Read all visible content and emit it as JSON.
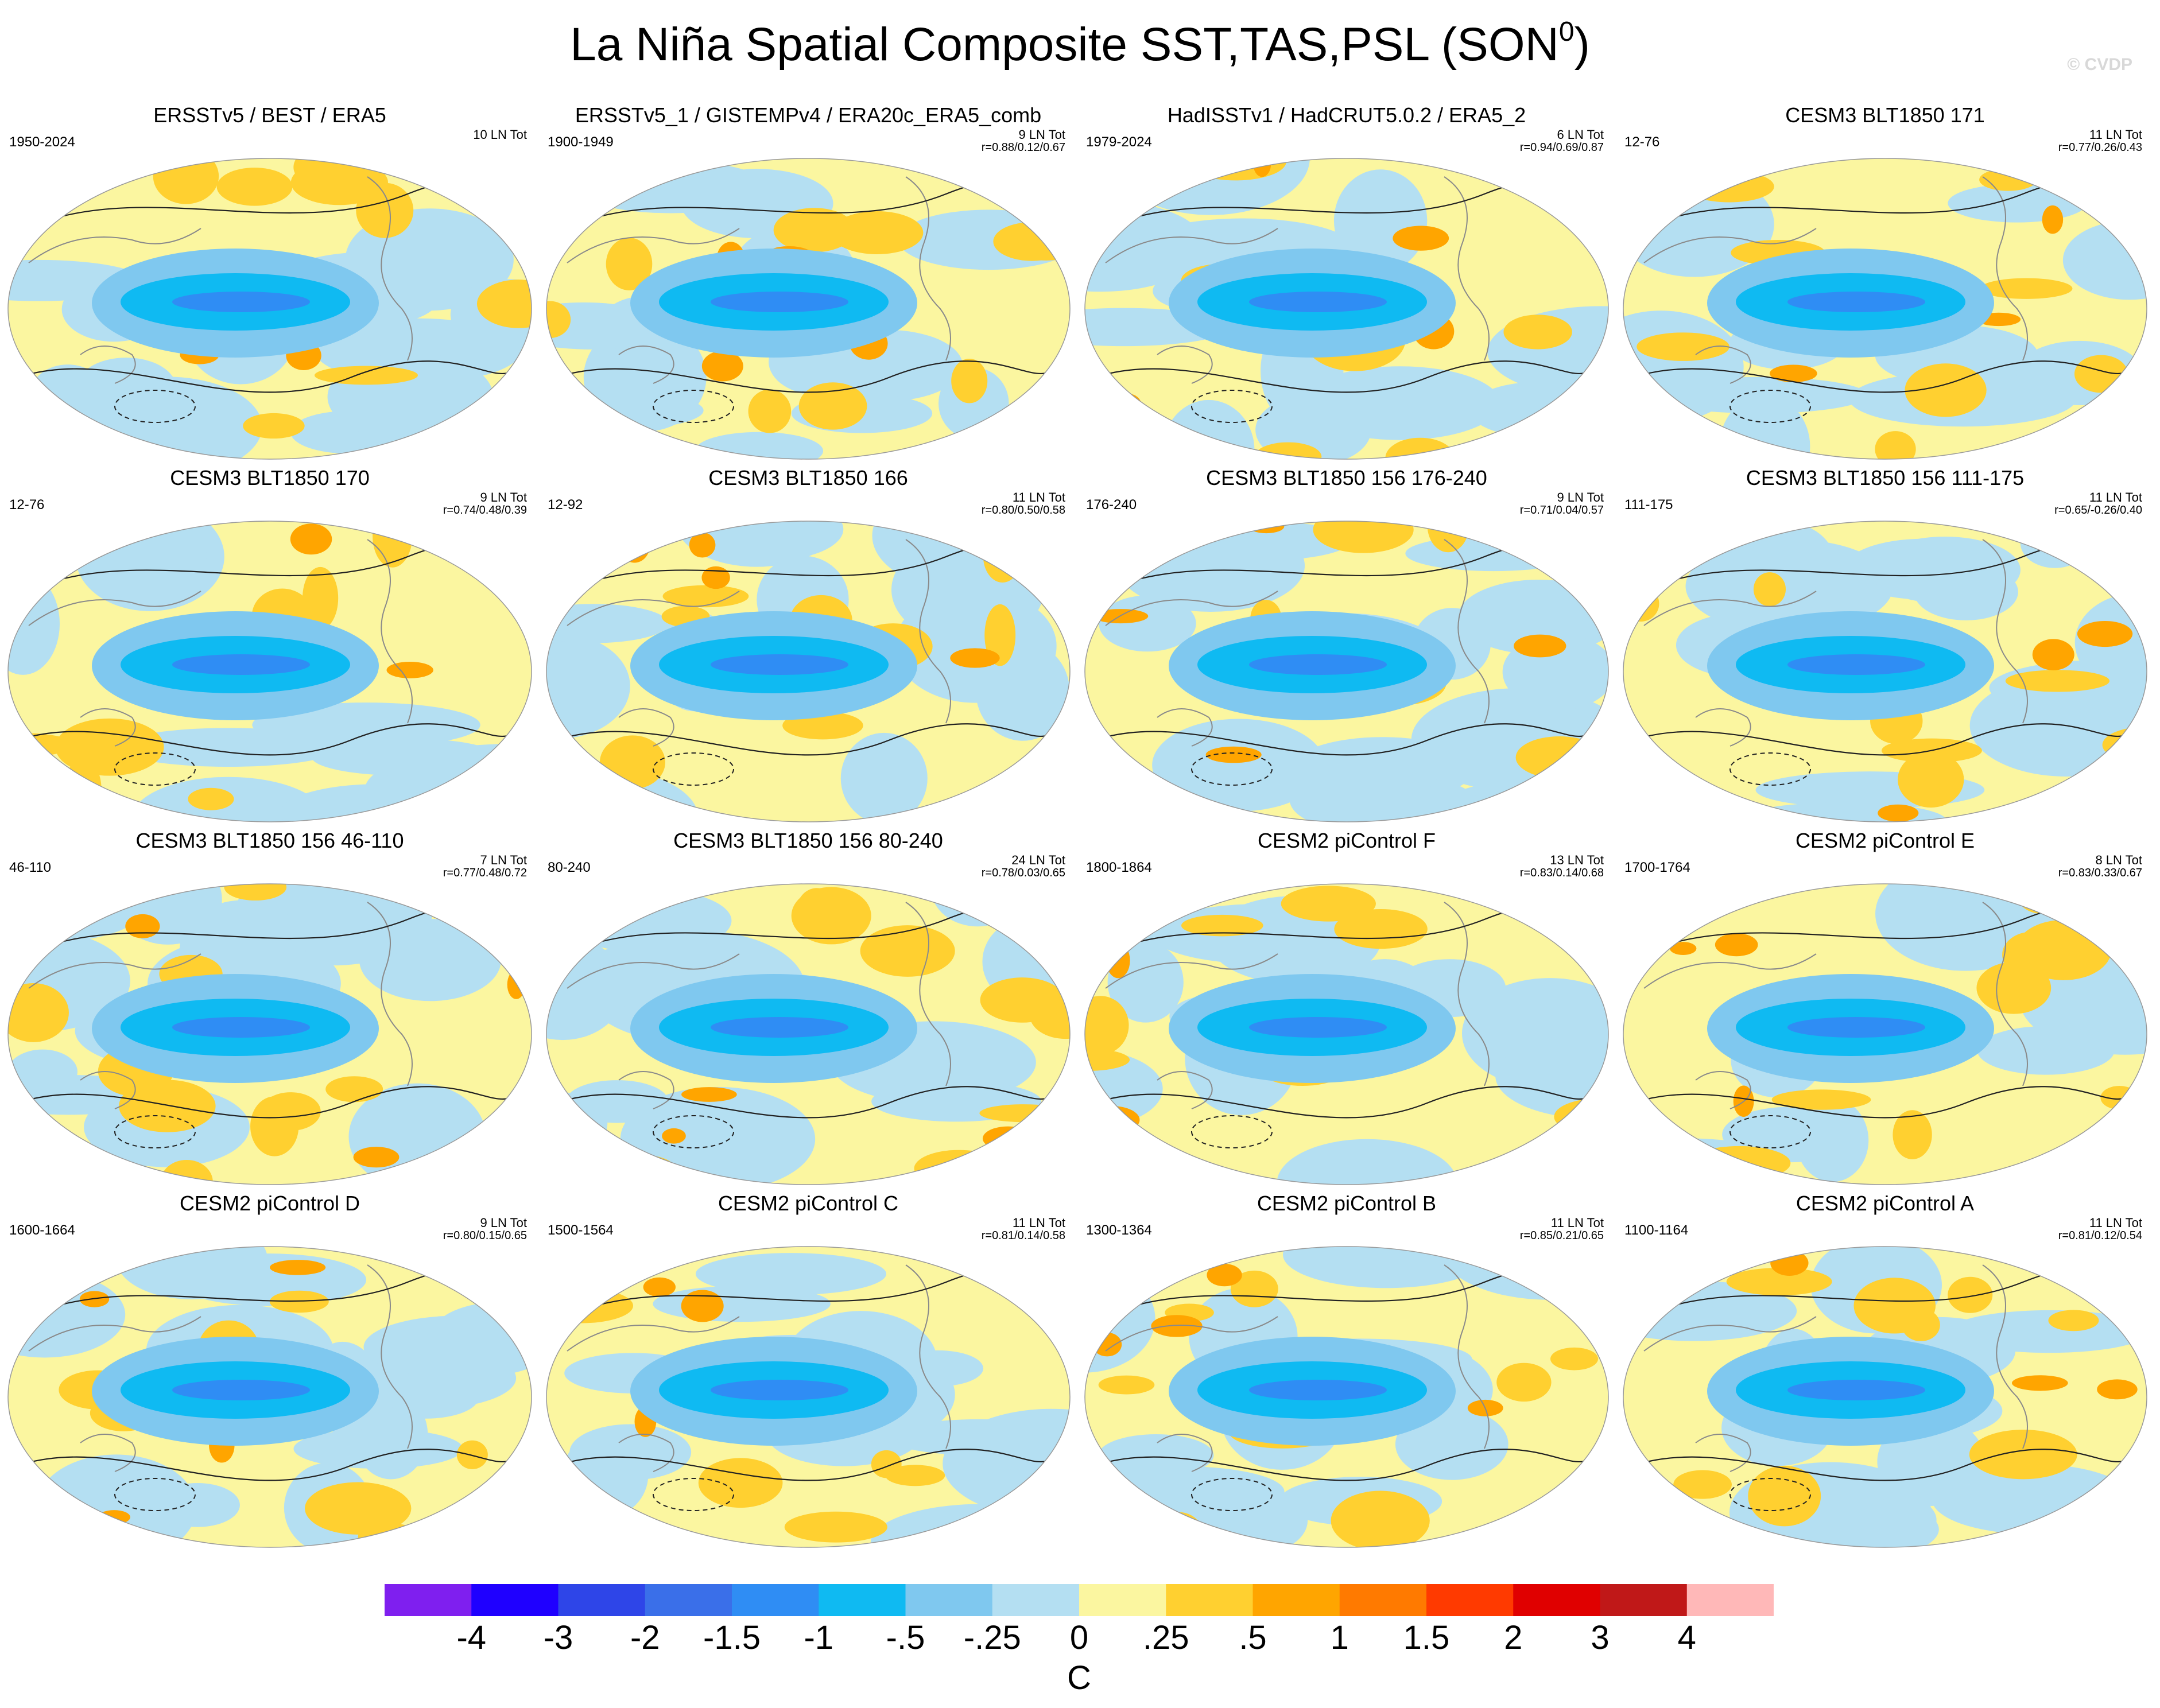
{
  "title": "La Niña Spatial Composite SST,TAS,PSL (SON",
  "title_sup": "0",
  "title_close": ")",
  "copyright": "© CVDP",
  "panels": [
    {
      "title": "ERSSTv5 / BEST / ERA5",
      "period": "1950-2024",
      "tot": "10 LN Tot",
      "corr": ""
    },
    {
      "title": "ERSSTv5_1 / GISTEMPv4 / ERA20c_ERA5_comb",
      "period": "1900-1949",
      "tot": "9 LN Tot",
      "corr": "r=0.88/0.12/0.67"
    },
    {
      "title": "HadISSTv1 / HadCRUT5.0.2 / ERA5_2",
      "period": "1979-2024",
      "tot": "6 LN Tot",
      "corr": "r=0.94/0.69/0.87"
    },
    {
      "title": "CESM3 BLT1850 171",
      "period": "12-76",
      "tot": "11 LN Tot",
      "corr": "r=0.77/0.26/0.43"
    },
    {
      "title": "CESM3 BLT1850 170",
      "period": "12-76",
      "tot": "9 LN Tot",
      "corr": "r=0.74/0.48/0.39"
    },
    {
      "title": "CESM3 BLT1850 166",
      "period": "12-92",
      "tot": "11 LN Tot",
      "corr": "r=0.80/0.50/0.58"
    },
    {
      "title": "CESM3 BLT1850 156 176-240",
      "period": "176-240",
      "tot": "9 LN Tot",
      "corr": "r=0.71/0.04/0.57"
    },
    {
      "title": "CESM3 BLT1850 156 111-175",
      "period": "111-175",
      "tot": "11 LN Tot",
      "corr": "r=0.65/-0.26/0.40"
    },
    {
      "title": "CESM3 BLT1850 156 46-110",
      "period": "46-110",
      "tot": "7 LN Tot",
      "corr": "r=0.77/0.48/0.72"
    },
    {
      "title": "CESM3 BLT1850 156 80-240",
      "period": "80-240",
      "tot": "24 LN Tot",
      "corr": "r=0.78/0.03/0.65"
    },
    {
      "title": "CESM2 piControl F",
      "period": "1800-1864",
      "tot": "13 LN Tot",
      "corr": "r=0.83/0.14/0.68"
    },
    {
      "title": "CESM2 piControl E",
      "period": "1700-1764",
      "tot": "8 LN Tot",
      "corr": "r=0.83/0.33/0.67"
    },
    {
      "title": "CESM2 piControl D",
      "period": "1600-1664",
      "tot": "9 LN Tot",
      "corr": "r=0.80/0.15/0.65"
    },
    {
      "title": "CESM2 piControl C",
      "period": "1500-1564",
      "tot": "11 LN Tot",
      "corr": "r=0.81/0.14/0.58"
    },
    {
      "title": "CESM2 piControl B",
      "period": "1300-1364",
      "tot": "11 LN Tot",
      "corr": "r=0.85/0.21/0.65"
    },
    {
      "title": "CESM2 piControl A",
      "period": "1100-1164",
      "tot": "11 LN Tot",
      "corr": "r=0.81/0.12/0.54"
    }
  ],
  "colorbar": {
    "colors": [
      "#7f1fef",
      "#1f00ff",
      "#2e45e8",
      "#3a6fe9",
      "#2f8df4",
      "#0fbaf2",
      "#7fc8ef",
      "#b4dff2",
      "#fbf6a0",
      "#ffd030",
      "#ffa500",
      "#ff7a00",
      "#ff3a00",
      "#e00000",
      "#c01818",
      "#ffb8b8"
    ],
    "labels": [
      "-4",
      "-3",
      "-2",
      "-1.5",
      "-1",
      "-.5",
      "-.25",
      "0",
      ".25",
      ".5",
      "1",
      "1.5",
      "2",
      "3",
      "4"
    ],
    "unit": "C"
  }
}
